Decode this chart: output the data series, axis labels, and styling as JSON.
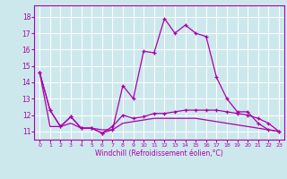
{
  "xlabel": "Windchill (Refroidissement éolien,°C)",
  "background_color": "#cde8ec",
  "grid_color": "#ffffff",
  "line_color": "#aa00aa",
  "xlim": [
    -0.5,
    23.5
  ],
  "ylim": [
    10.5,
    18.7
  ],
  "yticks": [
    11,
    12,
    13,
    14,
    15,
    16,
    17,
    18
  ],
  "xticks": [
    0,
    1,
    2,
    3,
    4,
    5,
    6,
    7,
    8,
    9,
    10,
    11,
    12,
    13,
    14,
    15,
    16,
    17,
    18,
    19,
    20,
    21,
    22,
    23
  ],
  "series1_x": [
    0,
    1,
    2,
    3,
    4,
    5,
    6,
    7,
    8,
    9,
    10,
    11,
    12,
    13,
    14,
    15,
    16,
    17,
    18,
    19,
    20,
    21,
    22,
    23
  ],
  "series1_y": [
    14.6,
    12.3,
    11.3,
    11.9,
    11.2,
    11.2,
    10.9,
    11.1,
    13.8,
    13.0,
    15.9,
    15.8,
    17.9,
    17.0,
    17.5,
    17.0,
    16.8,
    14.3,
    13.0,
    12.2,
    12.2,
    11.5,
    11.1,
    11.0
  ],
  "series2_x": [
    0,
    1,
    2,
    3,
    4,
    5,
    6,
    7,
    8,
    9,
    10,
    11,
    12,
    13,
    14,
    15,
    16,
    17,
    18,
    19,
    20,
    21,
    22,
    23
  ],
  "series2_y": [
    14.6,
    12.3,
    11.3,
    11.9,
    11.2,
    11.2,
    10.9,
    11.3,
    12.0,
    11.8,
    11.9,
    12.1,
    12.1,
    12.2,
    12.3,
    12.3,
    12.3,
    12.3,
    12.2,
    12.1,
    12.0,
    11.8,
    11.5,
    11.0
  ],
  "series3_x": [
    0,
    1,
    2,
    3,
    4,
    5,
    6,
    7,
    8,
    9,
    10,
    11,
    12,
    13,
    14,
    15,
    16,
    17,
    18,
    19,
    20,
    21,
    22,
    23
  ],
  "series3_y": [
    14.6,
    11.3,
    11.3,
    11.5,
    11.2,
    11.2,
    11.1,
    11.1,
    11.5,
    11.6,
    11.7,
    11.8,
    11.8,
    11.8,
    11.8,
    11.8,
    11.7,
    11.6,
    11.5,
    11.4,
    11.3,
    11.2,
    11.1,
    11.0
  ]
}
